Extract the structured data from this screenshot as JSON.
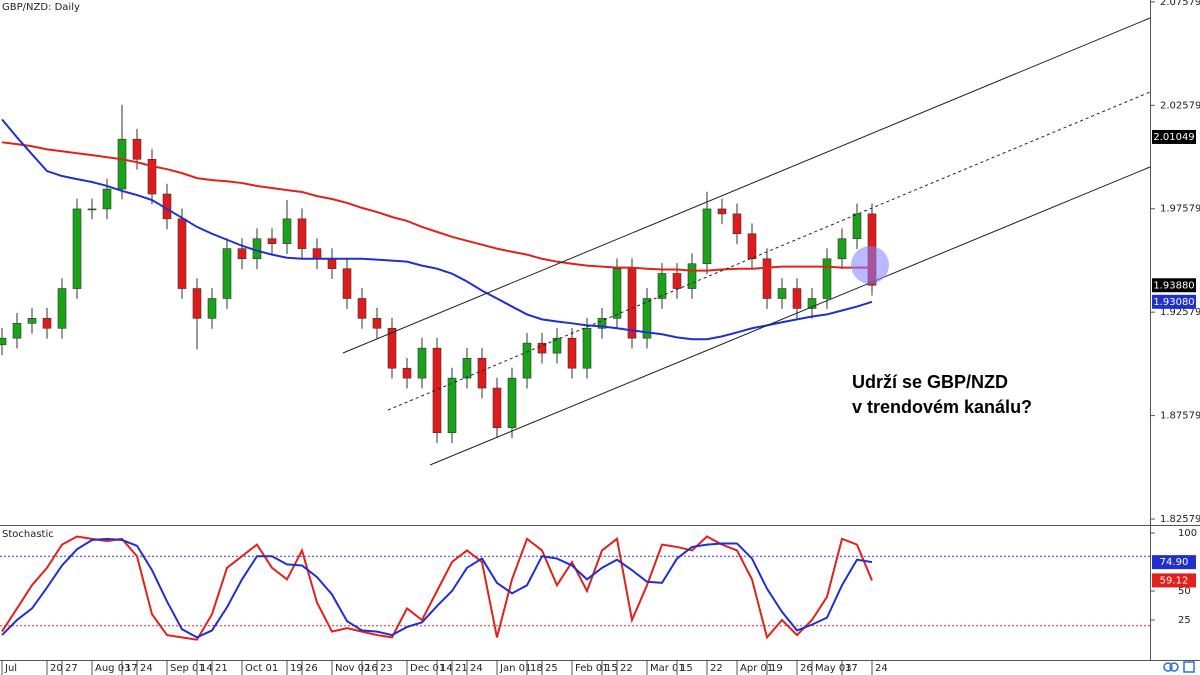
{
  "chart_data": [
    {
      "type": "candlestick",
      "title": "GBP/NZD: Daily",
      "categories": [
        "Jul",
        null,
        null,
        "20",
        "27",
        null,
        "Aug 03",
        null,
        "17",
        "24",
        null,
        "Sep 01",
        null,
        "14",
        "21",
        null,
        "Oct 01",
        null,
        null,
        "19",
        "26",
        null,
        "Nov 02",
        null,
        "16",
        "23",
        null,
        "Dec 01",
        null,
        "14",
        "21",
        "24",
        null,
        "Jan 01",
        null,
        "18",
        "25",
        null,
        "Feb 01",
        null,
        "15",
        "22",
        null,
        "Mar 01",
        null,
        "15",
        null,
        "22",
        null,
        "Apr 01",
        null,
        "19",
        null,
        "26",
        "May 03",
        null,
        "17",
        null,
        "24"
      ],
      "open": [
        1.91,
        1.9132,
        1.9204,
        1.9228,
        1.918,
        1.9372,
        1.9757,
        1.9757,
        1.9853,
        2.0094,
        1.9997,
        1.9829,
        1.9709,
        1.9372,
        1.9228,
        1.9324,
        1.9565,
        1.9516,
        1.9613,
        1.9589,
        1.9709,
        1.9565,
        1.9516,
        1.9468,
        1.9324,
        1.9228,
        1.918,
        1.8987,
        1.8939,
        1.9084,
        1.8675,
        1.8939,
        1.9035,
        1.8891,
        1.8699,
        1.8939,
        1.9108,
        1.906,
        1.9132,
        1.8987,
        1.918,
        1.9228,
        1.9468,
        1.9132,
        1.9324,
        1.9445,
        1.9372,
        1.9492,
        1.9757,
        1.9733,
        1.9637,
        1.9516,
        1.9324,
        1.9372,
        1.9276,
        1.9324,
        1.9516,
        1.9613,
        1.9733
      ],
      "high": [
        1.9182,
        1.9254,
        1.9278,
        1.9278,
        1.9422,
        1.9807,
        1.9807,
        1.9903,
        2.026,
        2.0144,
        2.0047,
        1.9879,
        1.9759,
        1.9422,
        1.9374,
        1.9615,
        1.9615,
        1.9663,
        1.9663,
        1.98,
        1.9759,
        1.9615,
        1.9566,
        1.9518,
        1.9374,
        1.9278,
        1.923,
        1.9037,
        1.9134,
        1.9134,
        1.8989,
        1.9085,
        1.9085,
        1.8941,
        1.8989,
        1.9158,
        1.9158,
        1.9182,
        1.9182,
        1.923,
        1.9278,
        1.9518,
        1.9518,
        1.9374,
        1.9495,
        1.9495,
        1.9542,
        1.984,
        1.9807,
        1.9783,
        1.9687,
        1.9566,
        1.9422,
        1.9422,
        1.9374,
        1.9566,
        1.9663,
        1.9783,
        1.9783
      ],
      "low": [
        1.905,
        1.9082,
        1.9154,
        1.913,
        1.913,
        1.9322,
        1.9707,
        1.9707,
        1.9803,
        1.9947,
        1.9779,
        1.9659,
        1.9322,
        1.9078,
        1.9178,
        1.9274,
        1.9466,
        1.9466,
        1.9539,
        1.9539,
        1.9515,
        1.9466,
        1.9418,
        1.9274,
        1.9178,
        1.913,
        1.8937,
        1.8889,
        1.8889,
        1.8625,
        1.8625,
        1.8889,
        1.8841,
        1.8649,
        1.8649,
        1.8889,
        1.901,
        1.901,
        1.8937,
        1.8937,
        1.913,
        1.9178,
        1.9082,
        1.9082,
        1.9274,
        1.9322,
        1.9322,
        1.9442,
        1.9683,
        1.9587,
        1.9466,
        1.9274,
        1.9274,
        1.9226,
        1.9226,
        1.9274,
        1.9466,
        1.9563,
        1.9338
      ],
      "close": [
        1.9132,
        1.9204,
        1.9228,
        1.918,
        1.9372,
        1.9757,
        1.9757,
        1.9853,
        2.0094,
        1.9997,
        1.9829,
        1.9709,
        1.9372,
        1.9228,
        1.9324,
        1.9565,
        1.9516,
        1.9613,
        1.9589,
        1.9709,
        1.9565,
        1.9516,
        1.9468,
        1.9324,
        1.9228,
        1.918,
        1.8987,
        1.8939,
        1.9084,
        1.8675,
        1.8939,
        1.9035,
        1.8891,
        1.8699,
        1.8939,
        1.9108,
        1.906,
        1.9132,
        1.8987,
        1.918,
        1.9228,
        1.9468,
        1.9132,
        1.9324,
        1.9445,
        1.9372,
        1.9492,
        1.9757,
        1.9733,
        1.9637,
        1.9516,
        1.9324,
        1.9372,
        1.9276,
        1.9324,
        1.9516,
        1.9613,
        1.9733,
        1.9388
      ],
      "up_color": "#1aa31a",
      "down_color": "#e01b1b",
      "overlays": [
        {
          "color": "#e3201b",
          "values": [
            2.0079,
            2.007,
            2.006,
            2.0045,
            2.0036,
            2.0026,
            2.0017,
            2.0007,
            1.9997,
            1.9983,
            1.9964,
            1.9949,
            1.993,
            1.9906,
            1.9896,
            1.9891,
            1.9882,
            1.9868,
            1.9858,
            1.9848,
            1.9839,
            1.9819,
            1.9805,
            1.9786,
            1.9762,
            1.9742,
            1.9718,
            1.9699,
            1.967,
            1.9646,
            1.9622,
            1.9603,
            1.9584,
            1.9565,
            1.955,
            1.9536,
            1.9516,
            1.9502,
            1.9492,
            1.9483,
            1.9478,
            1.9473,
            1.9473,
            1.9468,
            1.9464,
            1.9464,
            1.9459,
            1.9459,
            1.9464,
            1.9468,
            1.9468,
            1.9473,
            1.9478,
            1.9478,
            1.9478,
            1.9478,
            1.9473,
            1.9473,
            1.9473
          ]
        },
        {
          "color": "#1f2fd0",
          "values": [
            2.019,
            2.0103,
            2.0021,
            1.994,
            1.9916,
            1.9901,
            1.9887,
            1.9868,
            1.9844,
            1.9824,
            1.98,
            1.9757,
            1.9714,
            1.967,
            1.9637,
            1.9608,
            1.9579,
            1.9555,
            1.9536,
            1.9521,
            1.9516,
            1.9516,
            1.9516,
            1.9516,
            1.9516,
            1.9512,
            1.9507,
            1.9502,
            1.9483,
            1.9468,
            1.9444,
            1.9406,
            1.9362,
            1.9324,
            1.9285,
            1.9247,
            1.9223,
            1.9213,
            1.9204,
            1.9194,
            1.9189,
            1.918,
            1.917,
            1.916,
            1.9151,
            1.9136,
            1.9127,
            1.9127,
            1.9141,
            1.916,
            1.918,
            1.9194,
            1.9209,
            1.9223,
            1.9237,
            1.9247,
            1.9266,
            1.9285,
            1.9308
          ]
        }
      ],
      "ylim": [
        1.8229,
        2.0767
      ],
      "yticks": [
        2.07579,
        2.02579,
        1.97579,
        1.92579,
        1.87579,
        1.82579
      ],
      "price_labels": [
        {
          "value": 2.01049,
          "label": "2.01049",
          "color": "#000000"
        },
        {
          "value": 1.9388,
          "label": "1.93880",
          "color": "#000000"
        },
        {
          "value": 1.9308,
          "label": "1.93080",
          "color": "#1f2fd0"
        }
      ],
      "annotations": [
        "Udrží se GBP/NZD",
        "v trendovém kanálu?"
      ]
    },
    {
      "type": "line",
      "title": "Stochastic",
      "series": [
        {
          "color": "#e3201b",
          "values": [
            15,
            35,
            55,
            70,
            90,
            97,
            95,
            93,
            95,
            80,
            30,
            12,
            10,
            8,
            30,
            70,
            80,
            90,
            70,
            60,
            85,
            40,
            15,
            18,
            15,
            12,
            10,
            35,
            25,
            50,
            75,
            85,
            75,
            10,
            60,
            95,
            85,
            55,
            75,
            50,
            85,
            95,
            25,
            55,
            90,
            88,
            85,
            97,
            90,
            85,
            60,
            10,
            25,
            12,
            25,
            45,
            95,
            90,
            59.12
          ]
        },
        {
          "color": "#1f2fd0",
          "values": [
            12,
            25,
            35,
            53,
            72,
            86,
            94,
            95,
            94,
            89,
            68,
            41,
            17,
            10,
            16,
            36,
            60,
            80,
            80,
            73,
            72,
            62,
            47,
            24,
            16,
            15,
            12,
            19,
            23,
            37,
            50,
            70,
            78,
            57,
            48,
            55,
            80,
            78,
            72,
            60,
            70,
            77,
            68,
            58,
            57,
            78,
            88,
            90,
            91,
            91,
            78,
            52,
            32,
            16,
            21,
            27,
            55,
            77,
            74.9
          ]
        }
      ],
      "ylim": [
        -9.5,
        105.2
      ],
      "yticks": [
        25,
        50,
        100
      ],
      "levels": [
        {
          "value": 80,
          "color": "#3a3ac8"
        },
        {
          "value": 20,
          "color": "#e03030"
        }
      ],
      "price_labels": [
        {
          "value": 74.9,
          "label": "74.90",
          "color": "#1f2fd0"
        },
        {
          "value": 59.12,
          "label": "59.12",
          "color": "#e3201b"
        }
      ]
    }
  ]
}
